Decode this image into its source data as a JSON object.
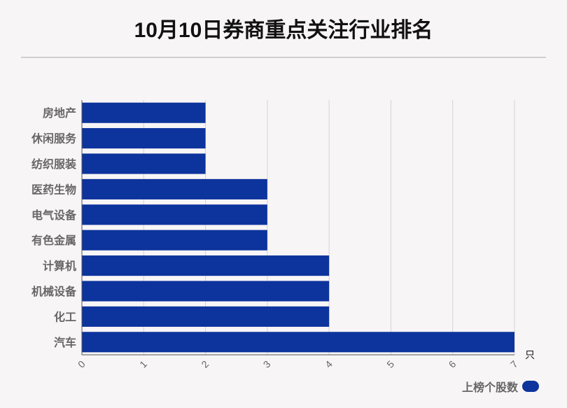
{
  "title": "10月10日券商重点关注行业排名",
  "chart_data": {
    "type": "bar",
    "orientation": "horizontal",
    "categories": [
      "房地产",
      "休闲服务",
      "纺织服装",
      "医药生物",
      "电气设备",
      "有色金属",
      "计算机",
      "机械设备",
      "化工",
      "汽车"
    ],
    "series": [
      {
        "name": "上榜个股数",
        "values": [
          2,
          2,
          2,
          3,
          3,
          3,
          4,
          4,
          4,
          7
        ]
      }
    ],
    "xlim": [
      0,
      7
    ],
    "x_ticks": [
      "0",
      "1",
      "2",
      "3",
      "4",
      "5",
      "6",
      "7"
    ],
    "unit": "只",
    "grid": true,
    "legend_position": "bottom-right",
    "bar_color": "#0d349c"
  }
}
